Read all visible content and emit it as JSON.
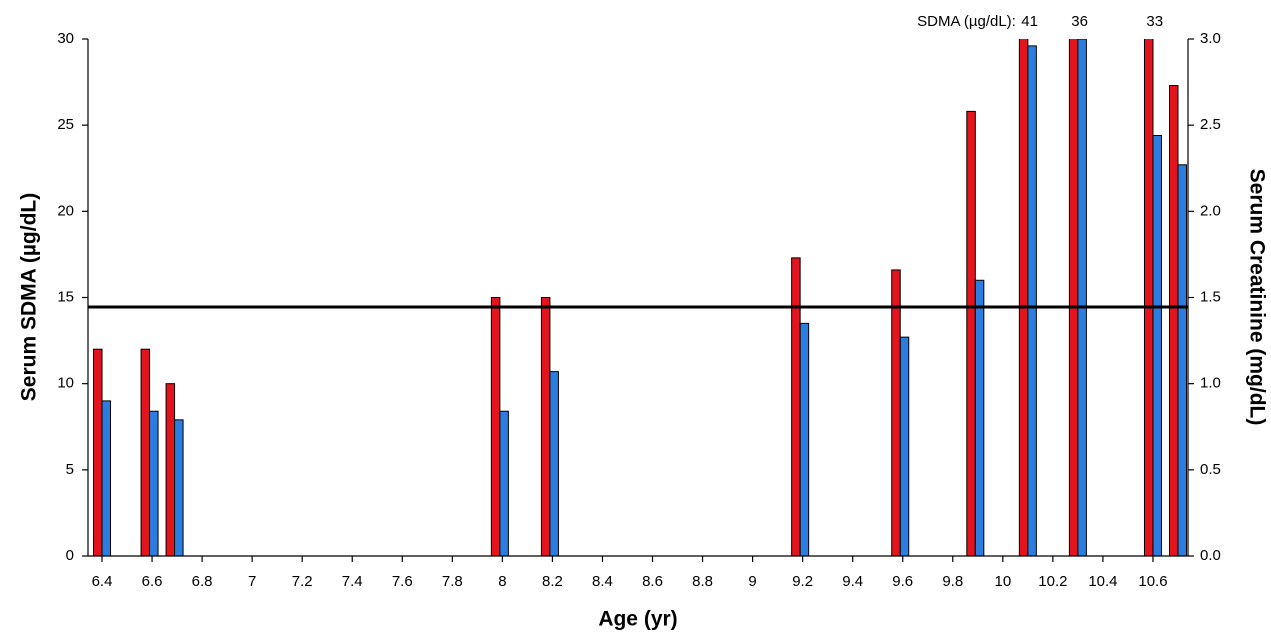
{
  "chart_data": {
    "type": "bar",
    "x_label": "Age (yr)",
    "y_label": "Serum SDMA (µg/dL)",
    "y2_label": "Serum Creatinine (mg/dL)",
    "annotation": "SDMA (µg/dL):",
    "x": [
      6.4,
      6.59,
      6.69,
      7.99,
      8.19,
      9.19,
      9.59,
      9.89,
      10.1,
      10.3,
      10.6,
      10.7
    ],
    "series": [
      {
        "color": "#e3141c",
        "values": [
          12,
          12,
          10,
          15,
          15,
          17.3,
          16.6,
          25.8,
          41,
          36,
          33,
          27.3
        ],
        "value_labels": [
          null,
          null,
          null,
          null,
          null,
          null,
          null,
          null,
          "41",
          "36",
          "33",
          null
        ]
      },
      {
        "color": "#2b7ee0",
        "axis": "y2",
        "values": [
          0.9,
          0.84,
          0.79,
          0.84,
          1.07,
          1.35,
          1.27,
          1.6,
          2.96,
          3.0,
          2.44,
          2.27
        ]
      }
    ],
    "reference_line": 14.45,
    "xlim": [
      6.344,
      10.74
    ],
    "xticks": [
      6.4,
      6.6,
      6.8,
      7,
      7.2,
      7.4,
      7.6,
      7.8,
      8,
      8.2,
      8.4,
      8.6,
      8.8,
      9,
      9.2,
      9.4,
      9.6,
      9.8,
      10,
      10.2,
      10.4,
      10.6
    ],
    "ylim": [
      0,
      30
    ],
    "yticks": [
      0,
      5,
      10,
      15,
      20,
      25,
      30
    ],
    "y2lim": [
      0,
      3
    ],
    "y2ticks": [
      {
        "value": 0,
        "label": "0.0"
      },
      {
        "value": 0.5,
        "label": "0.5"
      },
      {
        "value": 1,
        "label": "1.0"
      },
      {
        "value": 1.5,
        "label": "1.5"
      },
      {
        "value": 2,
        "label": "2.0"
      },
      {
        "value": 2.5,
        "label": "2.5"
      },
      {
        "value": 3,
        "label": "3.0"
      }
    ]
  }
}
